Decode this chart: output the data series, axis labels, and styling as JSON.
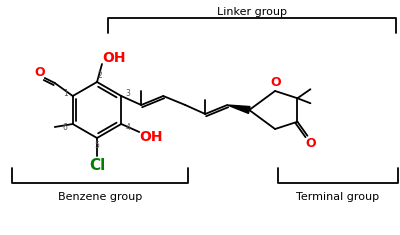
{
  "bg_color": "#ffffff",
  "linker_label": "Linker group",
  "benzene_label": "Benzene group",
  "terminal_label": "Terminal group",
  "color_red": "#ff0000",
  "color_green": "#008000",
  "color_black": "#000000",
  "lw": 1.3
}
